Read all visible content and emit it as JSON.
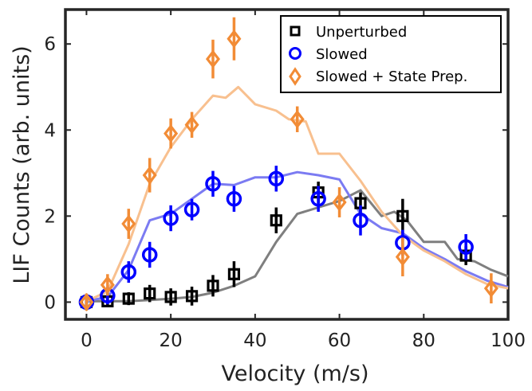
{
  "chart_data": {
    "type": "scatter",
    "xlabel": "Velocity (m/s)",
    "ylabel": "LIF Counts (arb. units)",
    "xlim": [
      -5,
      100
    ],
    "ylim": [
      -0.4,
      6.8
    ],
    "xticks": [
      0,
      20,
      40,
      60,
      80,
      100
    ],
    "yticks": [
      0,
      2,
      4,
      6
    ],
    "grid": false,
    "legend_position": "top-right",
    "series": [
      {
        "name": "Unperturbed",
        "marker": "square",
        "color": "#000000",
        "points": [
          {
            "x": 0,
            "y": 0.0,
            "err": 0.15
          },
          {
            "x": 5,
            "y": 0.02,
            "err": 0.12
          },
          {
            "x": 10,
            "y": 0.08,
            "err": 0.15
          },
          {
            "x": 15,
            "y": 0.2,
            "err": 0.2
          },
          {
            "x": 20,
            "y": 0.12,
            "err": 0.2
          },
          {
            "x": 25,
            "y": 0.14,
            "err": 0.22
          },
          {
            "x": 30,
            "y": 0.38,
            "err": 0.25
          },
          {
            "x": 35,
            "y": 0.65,
            "err": 0.3
          },
          {
            "x": 45,
            "y": 1.9,
            "err": 0.3
          },
          {
            "x": 55,
            "y": 2.55,
            "err": 0.25
          },
          {
            "x": 65,
            "y": 2.3,
            "err": 0.25
          },
          {
            "x": 75,
            "y": 2.0,
            "err": 0.4
          },
          {
            "x": 90,
            "y": 1.08,
            "err": 0.22
          }
        ]
      },
      {
        "name": "Slowed",
        "marker": "circle",
        "color": "#0000ff",
        "points": [
          {
            "x": 0,
            "y": 0.0,
            "err": 0.15
          },
          {
            "x": 5,
            "y": 0.15,
            "err": 0.2
          },
          {
            "x": 10,
            "y": 0.7,
            "err": 0.25
          },
          {
            "x": 15,
            "y": 1.1,
            "err": 0.3
          },
          {
            "x": 20,
            "y": 1.95,
            "err": 0.3
          },
          {
            "x": 25,
            "y": 2.15,
            "err": 0.25
          },
          {
            "x": 30,
            "y": 2.75,
            "err": 0.3
          },
          {
            "x": 35,
            "y": 2.4,
            "err": 0.3
          },
          {
            "x": 45,
            "y": 2.87,
            "err": 0.3
          },
          {
            "x": 55,
            "y": 2.4,
            "err": 0.3
          },
          {
            "x": 65,
            "y": 1.9,
            "err": 0.35
          },
          {
            "x": 75,
            "y": 1.38,
            "err": 0.3
          },
          {
            "x": 90,
            "y": 1.28,
            "err": 0.3
          }
        ]
      },
      {
        "name": "Slowed + State Prep.",
        "marker": "diamond",
        "color": "#f28c36",
        "points": [
          {
            "x": 0,
            "y": 0.0,
            "err": 0.2
          },
          {
            "x": 5,
            "y": 0.4,
            "err": 0.25
          },
          {
            "x": 10,
            "y": 1.82,
            "err": 0.35
          },
          {
            "x": 15,
            "y": 2.95,
            "err": 0.4
          },
          {
            "x": 20,
            "y": 3.92,
            "err": 0.35
          },
          {
            "x": 25,
            "y": 4.12,
            "err": 0.3
          },
          {
            "x": 30,
            "y": 5.65,
            "err": 0.45
          },
          {
            "x": 35,
            "y": 6.12,
            "err": 0.5
          },
          {
            "x": 50,
            "y": 4.25,
            "err": 0.3
          },
          {
            "x": 60,
            "y": 2.32,
            "err": 0.35
          },
          {
            "x": 75,
            "y": 1.05,
            "err": 0.45
          },
          {
            "x": 96,
            "y": 0.32,
            "err": 0.35
          }
        ]
      }
    ],
    "curves": [
      {
        "color": "#7f7f7f",
        "points": [
          [
            0,
            0.02
          ],
          [
            5,
            0.02
          ],
          [
            10,
            0.02
          ],
          [
            15,
            0.05
          ],
          [
            20,
            0.08
          ],
          [
            25,
            0.12
          ],
          [
            30,
            0.22
          ],
          [
            35,
            0.38
          ],
          [
            40,
            0.6
          ],
          [
            45,
            1.4
          ],
          [
            50,
            2.05
          ],
          [
            55,
            2.2
          ],
          [
            60,
            2.35
          ],
          [
            65,
            2.6
          ],
          [
            70,
            2.0
          ],
          [
            73,
            2.1
          ],
          [
            76,
            1.9
          ],
          [
            80,
            1.4
          ],
          [
            85,
            1.4
          ],
          [
            88,
            1.0
          ],
          [
            92,
            0.95
          ],
          [
            96,
            0.75
          ],
          [
            100,
            0.6
          ]
        ]
      },
      {
        "color": "#7b7bf2",
        "points": [
          [
            0,
            0.02
          ],
          [
            5,
            0.12
          ],
          [
            10,
            0.75
          ],
          [
            15,
            1.9
          ],
          [
            20,
            2.05
          ],
          [
            25,
            2.4
          ],
          [
            30,
            2.75
          ],
          [
            35,
            2.72
          ],
          [
            40,
            2.9
          ],
          [
            45,
            2.9
          ],
          [
            50,
            3.02
          ],
          [
            55,
            2.95
          ],
          [
            60,
            2.85
          ],
          [
            65,
            2.05
          ],
          [
            70,
            1.72
          ],
          [
            75,
            1.6
          ],
          [
            80,
            1.25
          ],
          [
            85,
            1.0
          ],
          [
            90,
            0.72
          ],
          [
            95,
            0.5
          ],
          [
            100,
            0.35
          ]
        ]
      },
      {
        "color": "#f8c08f",
        "points": [
          [
            0,
            0.02
          ],
          [
            5,
            0.25
          ],
          [
            10,
            1.35
          ],
          [
            15,
            2.75
          ],
          [
            20,
            3.6
          ],
          [
            25,
            4.25
          ],
          [
            30,
            4.8
          ],
          [
            33,
            4.75
          ],
          [
            36,
            5.0
          ],
          [
            40,
            4.6
          ],
          [
            45,
            4.45
          ],
          [
            48,
            4.25
          ],
          [
            52,
            4.2
          ],
          [
            55,
            3.45
          ],
          [
            60,
            3.45
          ],
          [
            65,
            2.82
          ],
          [
            70,
            2.1
          ],
          [
            75,
            1.55
          ],
          [
            80,
            1.2
          ],
          [
            85,
            0.95
          ],
          [
            90,
            0.65
          ],
          [
            95,
            0.42
          ],
          [
            100,
            0.32
          ]
        ]
      }
    ]
  }
}
